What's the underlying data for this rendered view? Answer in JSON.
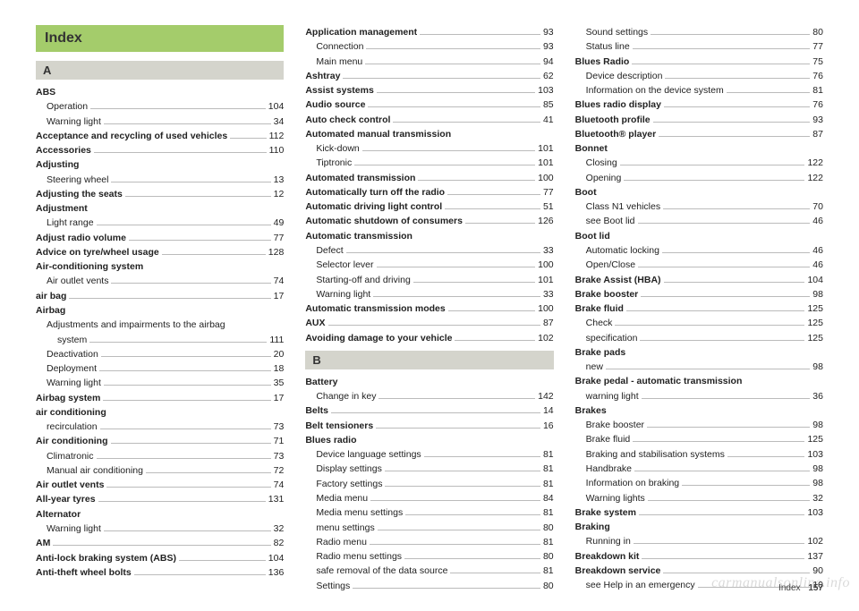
{
  "header": "Index",
  "footer_label": "Index",
  "footer_page": "157",
  "watermark": "carmanualsonline.info",
  "columns": [
    {
      "blocks": [
        {
          "type": "index-header"
        },
        {
          "type": "section",
          "label": "A"
        },
        {
          "type": "entries",
          "items": [
            {
              "label": "ABS",
              "bold": true
            },
            {
              "label": "Operation",
              "sub": true,
              "page": "104"
            },
            {
              "label": "Warning light",
              "sub": true,
              "page": "34"
            },
            {
              "label": "Acceptance and recycling of used vehicles",
              "bold": true,
              "page": "112"
            },
            {
              "label": "Accessories",
              "bold": true,
              "page": "110"
            },
            {
              "label": "Adjusting",
              "bold": true
            },
            {
              "label": "Steering wheel",
              "sub": true,
              "page": "13"
            },
            {
              "label": "Adjusting the seats",
              "bold": true,
              "page": "12"
            },
            {
              "label": "Adjustment",
              "bold": true
            },
            {
              "label": "Light range",
              "sub": true,
              "page": "49"
            },
            {
              "label": "Adjust radio volume",
              "bold": true,
              "page": "77"
            },
            {
              "label": "Advice on tyre/wheel usage",
              "bold": true,
              "page": "128"
            },
            {
              "label": "Air-conditioning system",
              "bold": true
            },
            {
              "label": "Air outlet vents",
              "sub": true,
              "page": "74"
            },
            {
              "label": "air bag",
              "bold": true,
              "page": "17"
            },
            {
              "label": "Airbag",
              "bold": true
            },
            {
              "label": "Adjustments and impairments to the airbag",
              "sub": true
            },
            {
              "label": "system",
              "sub": true,
              "extra_indent": true,
              "page": "111"
            },
            {
              "label": "Deactivation",
              "sub": true,
              "page": "20"
            },
            {
              "label": "Deployment",
              "sub": true,
              "page": "18"
            },
            {
              "label": "Warning light",
              "sub": true,
              "page": "35"
            },
            {
              "label": "Airbag system",
              "bold": true,
              "page": "17"
            },
            {
              "label": "air conditioning",
              "bold": true
            },
            {
              "label": "recirculation",
              "sub": true,
              "page": "73"
            },
            {
              "label": "Air conditioning",
              "bold": true,
              "page": "71"
            },
            {
              "label": "Climatronic",
              "sub": true,
              "page": "73"
            },
            {
              "label": "Manual air conditioning",
              "sub": true,
              "page": "72"
            },
            {
              "label": "Air outlet vents",
              "bold": true,
              "page": "74"
            },
            {
              "label": "All-year tyres",
              "bold": true,
              "page": "131"
            },
            {
              "label": "Alternator",
              "bold": true
            },
            {
              "label": "Warning light",
              "sub": true,
              "page": "32"
            },
            {
              "label": "AM",
              "bold": true,
              "page": "82"
            },
            {
              "label": "Anti-lock braking system (ABS)",
              "bold": true,
              "page": "104"
            },
            {
              "label": "Anti-theft wheel bolts",
              "bold": true,
              "page": "136"
            }
          ]
        }
      ]
    },
    {
      "blocks": [
        {
          "type": "entries",
          "items": [
            {
              "label": "Application management",
              "bold": true,
              "page": "93"
            },
            {
              "label": "Connection",
              "sub": true,
              "page": "93"
            },
            {
              "label": "Main menu",
              "sub": true,
              "page": "94"
            },
            {
              "label": "Ashtray",
              "bold": true,
              "page": "62"
            },
            {
              "label": "Assist systems",
              "bold": true,
              "page": "103"
            },
            {
              "label": "Audio source",
              "bold": true,
              "page": "85"
            },
            {
              "label": "Auto check control",
              "bold": true,
              "page": "41"
            },
            {
              "label": "Automated manual transmission",
              "bold": true
            },
            {
              "label": "Kick-down",
              "sub": true,
              "page": "101"
            },
            {
              "label": "Tiptronic",
              "sub": true,
              "page": "101"
            },
            {
              "label": "Automated transmission",
              "bold": true,
              "page": "100"
            },
            {
              "label": "Automatically turn off the radio",
              "bold": true,
              "page": "77"
            },
            {
              "label": "Automatic driving light control",
              "bold": true,
              "page": "51"
            },
            {
              "label": "Automatic shutdown of consumers",
              "bold": true,
              "page": "126"
            },
            {
              "label": "Automatic transmission",
              "bold": true
            },
            {
              "label": "Defect",
              "sub": true,
              "page": "33"
            },
            {
              "label": "Selector lever",
              "sub": true,
              "page": "100"
            },
            {
              "label": "Starting-off and driving",
              "sub": true,
              "page": "101"
            },
            {
              "label": "Warning light",
              "sub": true,
              "page": "33"
            },
            {
              "label": "Automatic transmission modes",
              "bold": true,
              "page": "100"
            },
            {
              "label": "AUX",
              "bold": true,
              "page": "87"
            },
            {
              "label": "Avoiding damage to your vehicle",
              "bold": true,
              "page": "102"
            }
          ]
        },
        {
          "type": "section",
          "label": "B"
        },
        {
          "type": "entries",
          "items": [
            {
              "label": "Battery",
              "bold": true
            },
            {
              "label": "Change in key",
              "sub": true,
              "page": "142"
            },
            {
              "label": "Belts",
              "bold": true,
              "page": "14"
            },
            {
              "label": "Belt tensioners",
              "bold": true,
              "page": "16"
            },
            {
              "label": "Blues radio",
              "bold": true
            },
            {
              "label": "Device language settings",
              "sub": true,
              "page": "81"
            },
            {
              "label": "Display settings",
              "sub": true,
              "page": "81"
            },
            {
              "label": "Factory settings",
              "sub": true,
              "page": "81"
            },
            {
              "label": "Media menu",
              "sub": true,
              "page": "84"
            },
            {
              "label": "Media menu settings",
              "sub": true,
              "page": "81"
            },
            {
              "label": "menu settings",
              "sub": true,
              "page": "80"
            },
            {
              "label": "Radio menu",
              "sub": true,
              "page": "81"
            },
            {
              "label": "Radio menu settings",
              "sub": true,
              "page": "80"
            },
            {
              "label": "safe removal of the data source",
              "sub": true,
              "page": "81"
            },
            {
              "label": "Settings",
              "sub": true,
              "page": "80"
            }
          ]
        }
      ]
    },
    {
      "blocks": [
        {
          "type": "entries",
          "items": [
            {
              "label": "Sound settings",
              "sub": true,
              "page": "80"
            },
            {
              "label": "Status line",
              "sub": true,
              "page": "77"
            },
            {
              "label": "Blues Radio",
              "bold": true,
              "page": "75"
            },
            {
              "label": "Device description",
              "sub": true,
              "page": "76"
            },
            {
              "label": "Information on the device system",
              "sub": true,
              "page": "81"
            },
            {
              "label": "Blues radio display",
              "bold": true,
              "page": "76"
            },
            {
              "label": "Bluetooth profile",
              "bold": true,
              "page": "93"
            },
            {
              "label": "Bluetooth® player",
              "bold": true,
              "page": "87"
            },
            {
              "label": "Bonnet",
              "bold": true
            },
            {
              "label": "Closing",
              "sub": true,
              "page": "122"
            },
            {
              "label": "Opening",
              "sub": true,
              "page": "122"
            },
            {
              "label": "Boot",
              "bold": true
            },
            {
              "label": "Class N1 vehicles",
              "sub": true,
              "page": "70"
            },
            {
              "label": "see Boot lid",
              "sub": true,
              "page": "46"
            },
            {
              "label": "Boot lid",
              "bold": true
            },
            {
              "label": "Automatic locking",
              "sub": true,
              "page": "46"
            },
            {
              "label": "Open/Close",
              "sub": true,
              "page": "46"
            },
            {
              "label": "Brake Assist (HBA)",
              "bold": true,
              "page": "104"
            },
            {
              "label": "Brake booster",
              "bold": true,
              "page": "98"
            },
            {
              "label": "Brake fluid",
              "bold": true,
              "page": "125"
            },
            {
              "label": "Check",
              "sub": true,
              "page": "125"
            },
            {
              "label": "specification",
              "sub": true,
              "page": "125"
            },
            {
              "label": "Brake pads",
              "bold": true
            },
            {
              "label": "new",
              "sub": true,
              "page": "98"
            },
            {
              "label": "Brake pedal - automatic transmission",
              "bold": true
            },
            {
              "label": "warning light",
              "sub": true,
              "page": "36"
            },
            {
              "label": "Brakes",
              "bold": true
            },
            {
              "label": "Brake booster",
              "sub": true,
              "page": "98"
            },
            {
              "label": "Brake fluid",
              "sub": true,
              "page": "125"
            },
            {
              "label": "Braking and stabilisation systems",
              "sub": true,
              "page": "103"
            },
            {
              "label": "Handbrake",
              "sub": true,
              "page": "98"
            },
            {
              "label": "Information on braking",
              "sub": true,
              "page": "98"
            },
            {
              "label": "Warning lights",
              "sub": true,
              "page": "32"
            },
            {
              "label": "Brake system",
              "bold": true,
              "page": "103"
            },
            {
              "label": "Braking",
              "bold": true
            },
            {
              "label": "Running in",
              "sub": true,
              "page": "102"
            },
            {
              "label": "Breakdown kit",
              "bold": true,
              "page": "137"
            },
            {
              "label": "Breakdown service",
              "bold": true,
              "page": "90"
            },
            {
              "label": "see Help in an emergency",
              "sub": true,
              "page": "10"
            }
          ]
        }
      ]
    }
  ]
}
